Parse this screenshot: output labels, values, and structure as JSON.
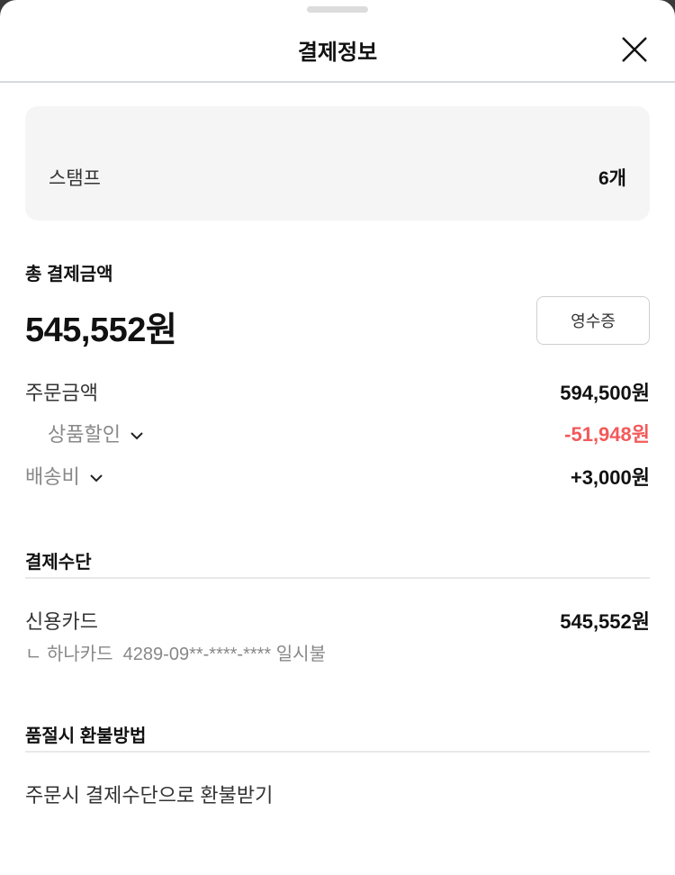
{
  "header": {
    "title": "결제정보",
    "close_icon": "close-icon"
  },
  "stamp": {
    "label": "스탬프",
    "value": "6개"
  },
  "total": {
    "label": "총 결제금액",
    "amount": "545,552원",
    "receipt_button": "영수증"
  },
  "breakdown": [
    {
      "label": "주문금액",
      "value": "594,500원"
    },
    {
      "label": "상품할인",
      "value": "-51,948원",
      "color": "#f25a5a"
    },
    {
      "label": "배송비",
      "value": "+3,000원"
    }
  ],
  "payment": {
    "title": "결제수단",
    "method": "신용카드",
    "amount": "545,552원",
    "detail": "ㄴ 하나카드  4289-09**-****-**** 일시불"
  },
  "refund": {
    "title": "품절시 환불방법",
    "text": "주문시 결제수단으로 환불받기"
  }
}
